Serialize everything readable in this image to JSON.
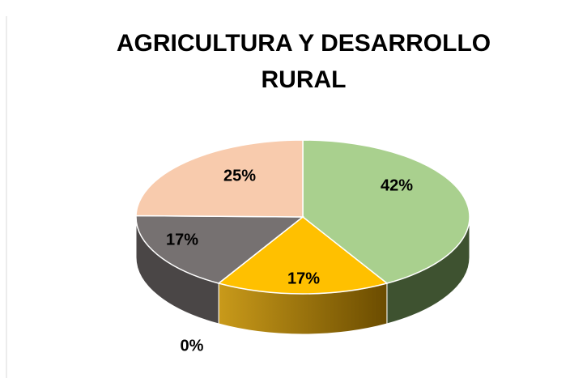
{
  "chart_data": {
    "type": "pie",
    "title": [
      "AGRICULTURA Y DESARROLLO",
      "RURAL"
    ],
    "categories": [
      null,
      null,
      null,
      null,
      null
    ],
    "values": [
      42,
      17,
      17,
      25,
      0
    ],
    "value_labels": [
      "42%",
      "17%",
      "17%",
      "25%",
      "0%"
    ],
    "colors": [
      "#a9d08e",
      "#ffc000",
      "#767171",
      "#f8cbad",
      "#5b9bd5"
    ]
  }
}
